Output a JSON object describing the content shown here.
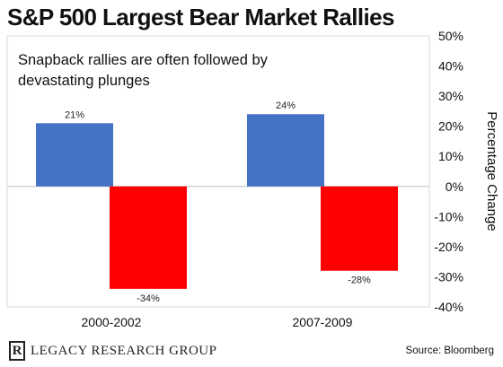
{
  "title": "S&P 500 Largest Bear Market Rallies",
  "annotation_lines": [
    "Snapback rallies are often followed by",
    "devastating plunges"
  ],
  "footer": {
    "logo_letter": "R",
    "logo_text": "LEGACY RESEARCH GROUP",
    "source": "Source: Bloomberg"
  },
  "chart_data": {
    "type": "bar",
    "categories": [
      "2000-2002",
      "2007-2009"
    ],
    "series": [
      {
        "values": [
          21,
          24
        ],
        "color": "#4472c4"
      },
      {
        "values": [
          -34,
          -28
        ],
        "color": "#ff0000"
      }
    ],
    "data_labels": [
      [
        "21%",
        "24%"
      ],
      [
        "-34%",
        "-28%"
      ]
    ],
    "ylabel": "Percentage Change",
    "ylim": [
      -40,
      50
    ],
    "yticks": [
      50,
      40,
      30,
      20,
      10,
      0,
      -10,
      -20,
      -30,
      -40
    ],
    "ytick_labels": [
      "50%",
      "40%",
      "30%",
      "20%",
      "10%",
      "0%",
      "-10%",
      "-20%",
      "-30%",
      "-40%"
    ],
    "y_axis_position": "right",
    "grid": false,
    "legend": "none"
  }
}
